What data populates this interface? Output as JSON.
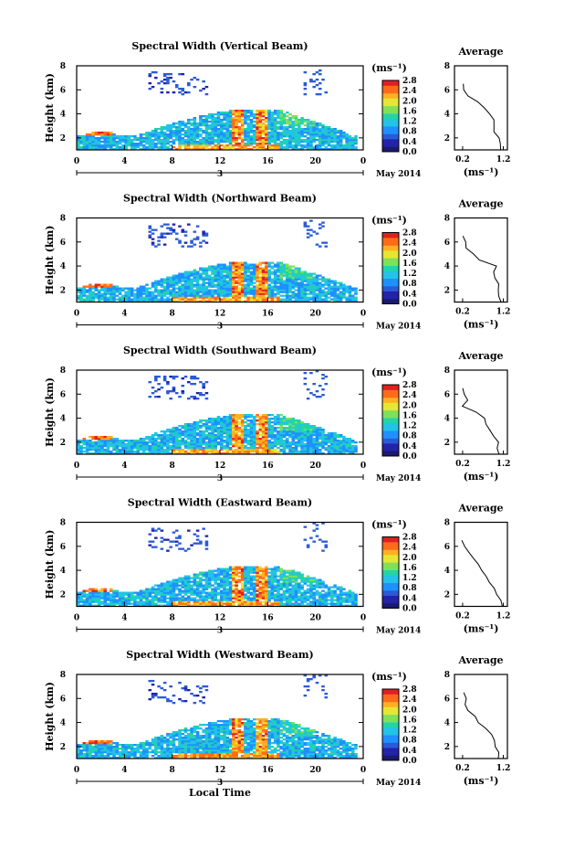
{
  "chart_data": [
    {
      "type": "heatmap",
      "title": "Spectral Width (Vertical Beam)",
      "ylabel": "Height (km)",
      "x_ticks": [
        "0",
        "4",
        "8",
        "12",
        "16",
        "20",
        "0"
      ],
      "date_tick": "3",
      "date_label": "May 2014",
      "yticks": [
        "2",
        "4",
        "6",
        "8"
      ],
      "ylim": [
        1,
        8
      ],
      "xlim": [
        0,
        24
      ],
      "colorbar": {
        "unit": "(ms⁻¹)",
        "ticks": [
          "0.0",
          "0.4",
          "0.8",
          "1.2",
          "1.6",
          "2.0",
          "2.4",
          "2.8"
        ]
      },
      "average_profile": {
        "title": "Average",
        "xlabel": "(ms⁻¹)",
        "xticks": [
          "0.2",
          "1.2"
        ],
        "yticks": [
          "2",
          "4",
          "6",
          "8"
        ],
        "height_km": [
          1.0,
          1.5,
          2.0,
          2.5,
          3.0,
          3.5,
          4.0,
          4.5,
          5.0,
          5.5,
          6.0,
          6.5
        ],
        "width_ms": [
          1.15,
          1.1,
          1.1,
          1.0,
          1.0,
          0.95,
          0.9,
          0.75,
          0.6,
          0.35,
          0.25,
          0.2
        ]
      }
    },
    {
      "type": "heatmap",
      "title": "Spectral Width (Northward Beam)",
      "ylabel": "Height (km)",
      "x_ticks": [
        "0",
        "4",
        "8",
        "12",
        "16",
        "20",
        "0"
      ],
      "date_tick": "3",
      "date_label": "May 2014",
      "yticks": [
        "2",
        "4",
        "6",
        "8"
      ],
      "ylim": [
        1,
        8
      ],
      "xlim": [
        0,
        24
      ],
      "colorbar": {
        "unit": "(ms⁻¹)",
        "ticks": [
          "0.0",
          "0.4",
          "0.8",
          "1.2",
          "1.6",
          "2.0",
          "2.4",
          "2.8"
        ]
      },
      "average_profile": {
        "title": "Average",
        "xlabel": "(ms⁻¹)",
        "xticks": [
          "0.2",
          "1.2"
        ],
        "yticks": [
          "2",
          "4",
          "6",
          "8"
        ],
        "height_km": [
          1.0,
          1.5,
          2.0,
          2.5,
          3.0,
          3.5,
          4.0,
          4.5,
          5.0,
          5.5,
          6.0,
          6.5
        ],
        "width_ms": [
          1.15,
          1.1,
          1.05,
          1.05,
          1.0,
          0.95,
          1.0,
          0.6,
          0.45,
          0.3,
          0.25,
          0.2
        ]
      }
    },
    {
      "type": "heatmap",
      "title": "Spectral Width (Southward Beam)",
      "ylabel": "Height (km)",
      "x_ticks": [
        "0",
        "4",
        "8",
        "12",
        "16",
        "20",
        "0"
      ],
      "date_tick": "3",
      "date_label": "May 2014",
      "yticks": [
        "2",
        "4",
        "6",
        "8"
      ],
      "ylim": [
        1,
        8
      ],
      "xlim": [
        0,
        24
      ],
      "colorbar": {
        "unit": "(ms⁻¹)",
        "ticks": [
          "0.0",
          "0.4",
          "0.8",
          "1.2",
          "1.6",
          "2.0",
          "2.4",
          "2.8"
        ]
      },
      "average_profile": {
        "title": "Average",
        "xlabel": "(ms⁻¹)",
        "xticks": [
          "0.2",
          "1.2"
        ],
        "yticks": [
          "2",
          "4",
          "6",
          "8"
        ],
        "height_km": [
          1.0,
          1.5,
          2.0,
          2.5,
          3.0,
          3.5,
          4.0,
          4.5,
          5.0,
          5.5,
          6.0,
          6.5
        ],
        "width_ms": [
          1.1,
          1.05,
          1.1,
          1.0,
          0.85,
          0.8,
          0.75,
          0.5,
          0.2,
          0.35,
          0.2,
          0.2
        ]
      }
    },
    {
      "type": "heatmap",
      "title": "Spectral Width (Eastward Beam)",
      "ylabel": "Height (km)",
      "x_ticks": [
        "0",
        "4",
        "8",
        "12",
        "16",
        "20",
        "0"
      ],
      "date_tick": "3",
      "date_label": "May 2014",
      "yticks": [
        "2",
        "4",
        "6",
        "8"
      ],
      "ylim": [
        1,
        8
      ],
      "xlim": [
        0,
        24
      ],
      "colorbar": {
        "unit": "(ms⁻¹)",
        "ticks": [
          "0.0",
          "0.4",
          "0.8",
          "1.2",
          "1.6",
          "2.0",
          "2.4",
          "2.8"
        ]
      },
      "average_profile": {
        "title": "Average",
        "xlabel": "(ms⁻¹)",
        "xticks": [
          "0.2",
          "1.2"
        ],
        "yticks": [
          "2",
          "4",
          "6",
          "8"
        ],
        "height_km": [
          1.0,
          1.5,
          2.0,
          2.5,
          3.0,
          3.5,
          4.0,
          4.5,
          5.0,
          5.5,
          6.0,
          6.5
        ],
        "width_ms": [
          1.15,
          1.1,
          1.0,
          0.95,
          0.85,
          0.75,
          0.7,
          0.6,
          0.5,
          0.35,
          0.25,
          0.2
        ]
      }
    },
    {
      "type": "heatmap",
      "title": "Spectral Width (Westward Beam)",
      "ylabel": "Height (km)",
      "x_ticks": [
        "0",
        "4",
        "8",
        "12",
        "16",
        "20",
        "0"
      ],
      "date_tick": "3",
      "date_label": "May 2014",
      "xlabel": "Local Time",
      "yticks": [
        "2",
        "4",
        "6",
        "8"
      ],
      "ylim": [
        1,
        8
      ],
      "xlim": [
        0,
        24
      ],
      "colorbar": {
        "unit": "(ms⁻¹)",
        "ticks": [
          "0.0",
          "0.4",
          "0.8",
          "1.2",
          "1.6",
          "2.0",
          "2.4",
          "2.8"
        ]
      },
      "average_profile": {
        "title": "Average",
        "xlabel": "(ms⁻¹)",
        "xticks": [
          "0.2",
          "1.2"
        ],
        "yticks": [
          "2",
          "4",
          "6",
          "8"
        ],
        "height_km": [
          1.0,
          1.5,
          2.0,
          2.5,
          3.0,
          3.5,
          4.0,
          4.5,
          5.0,
          5.5,
          6.0,
          6.5
        ],
        "width_ms": [
          1.1,
          1.05,
          1.0,
          1.0,
          0.9,
          0.8,
          0.6,
          0.5,
          0.3,
          0.25,
          0.3,
          0.2
        ]
      }
    }
  ],
  "palette": [
    "#1a1a6e",
    "#2222aa",
    "#2a5bd7",
    "#1e90ff",
    "#22c3e6",
    "#22d4a8",
    "#7fe05a",
    "#e6e633",
    "#ffb020",
    "#ff6a1a",
    "#e02020"
  ]
}
